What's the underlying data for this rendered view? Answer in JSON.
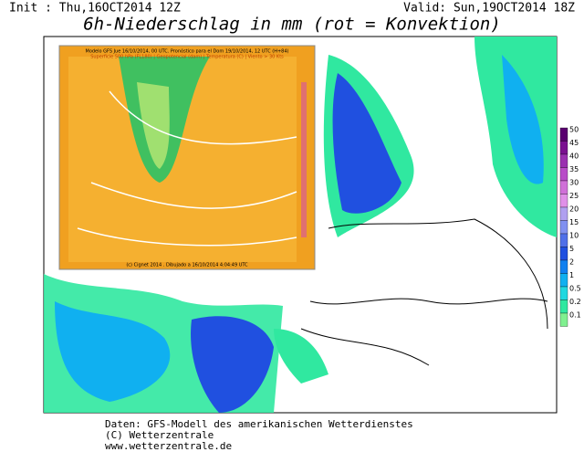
{
  "header": {
    "init": "Init : Thu,16OCT2014 12Z",
    "valid": "Valid: Sun,19OCT2014 18Z",
    "title": "6h-Niederschlag in mm (rot = Konvektion)"
  },
  "inset": {
    "title": "Modelo GFS Jue 16/10/2014, 00 UTC. Pronóstico para el Dom 19/10/2014, 12 UTC (H+84)",
    "subtitle": "Superficie 500 hPa (FL180) | Geopotencial (dam) | Temperatura (C) | Viento > 30 Kts",
    "credit": "(c) Cignet 2014 . Dibujado a 16/10/2014 4:04:49 UTC"
  },
  "legend": {
    "levels": [
      50,
      45,
      40,
      35,
      30,
      25,
      20,
      15,
      10,
      5,
      2,
      1,
      0.5,
      0.2,
      0.1
    ],
    "colors": [
      "#5a0070",
      "#7a1090",
      "#9a30b0",
      "#b84cc8",
      "#d070d8",
      "#e090e8",
      "#b0a0f0",
      "#8090f0",
      "#5070e8",
      "#2050e0",
      "#1080f0",
      "#10b0f0",
      "#20d8e0",
      "#30e8a0",
      "#80f090"
    ]
  },
  "footer": {
    "line1": "Daten: GFS-Modell des amerikanischen Wetterdienstes",
    "line2": "(C) Wetterzentrale",
    "line3": "www.wetterzentrale.de"
  }
}
